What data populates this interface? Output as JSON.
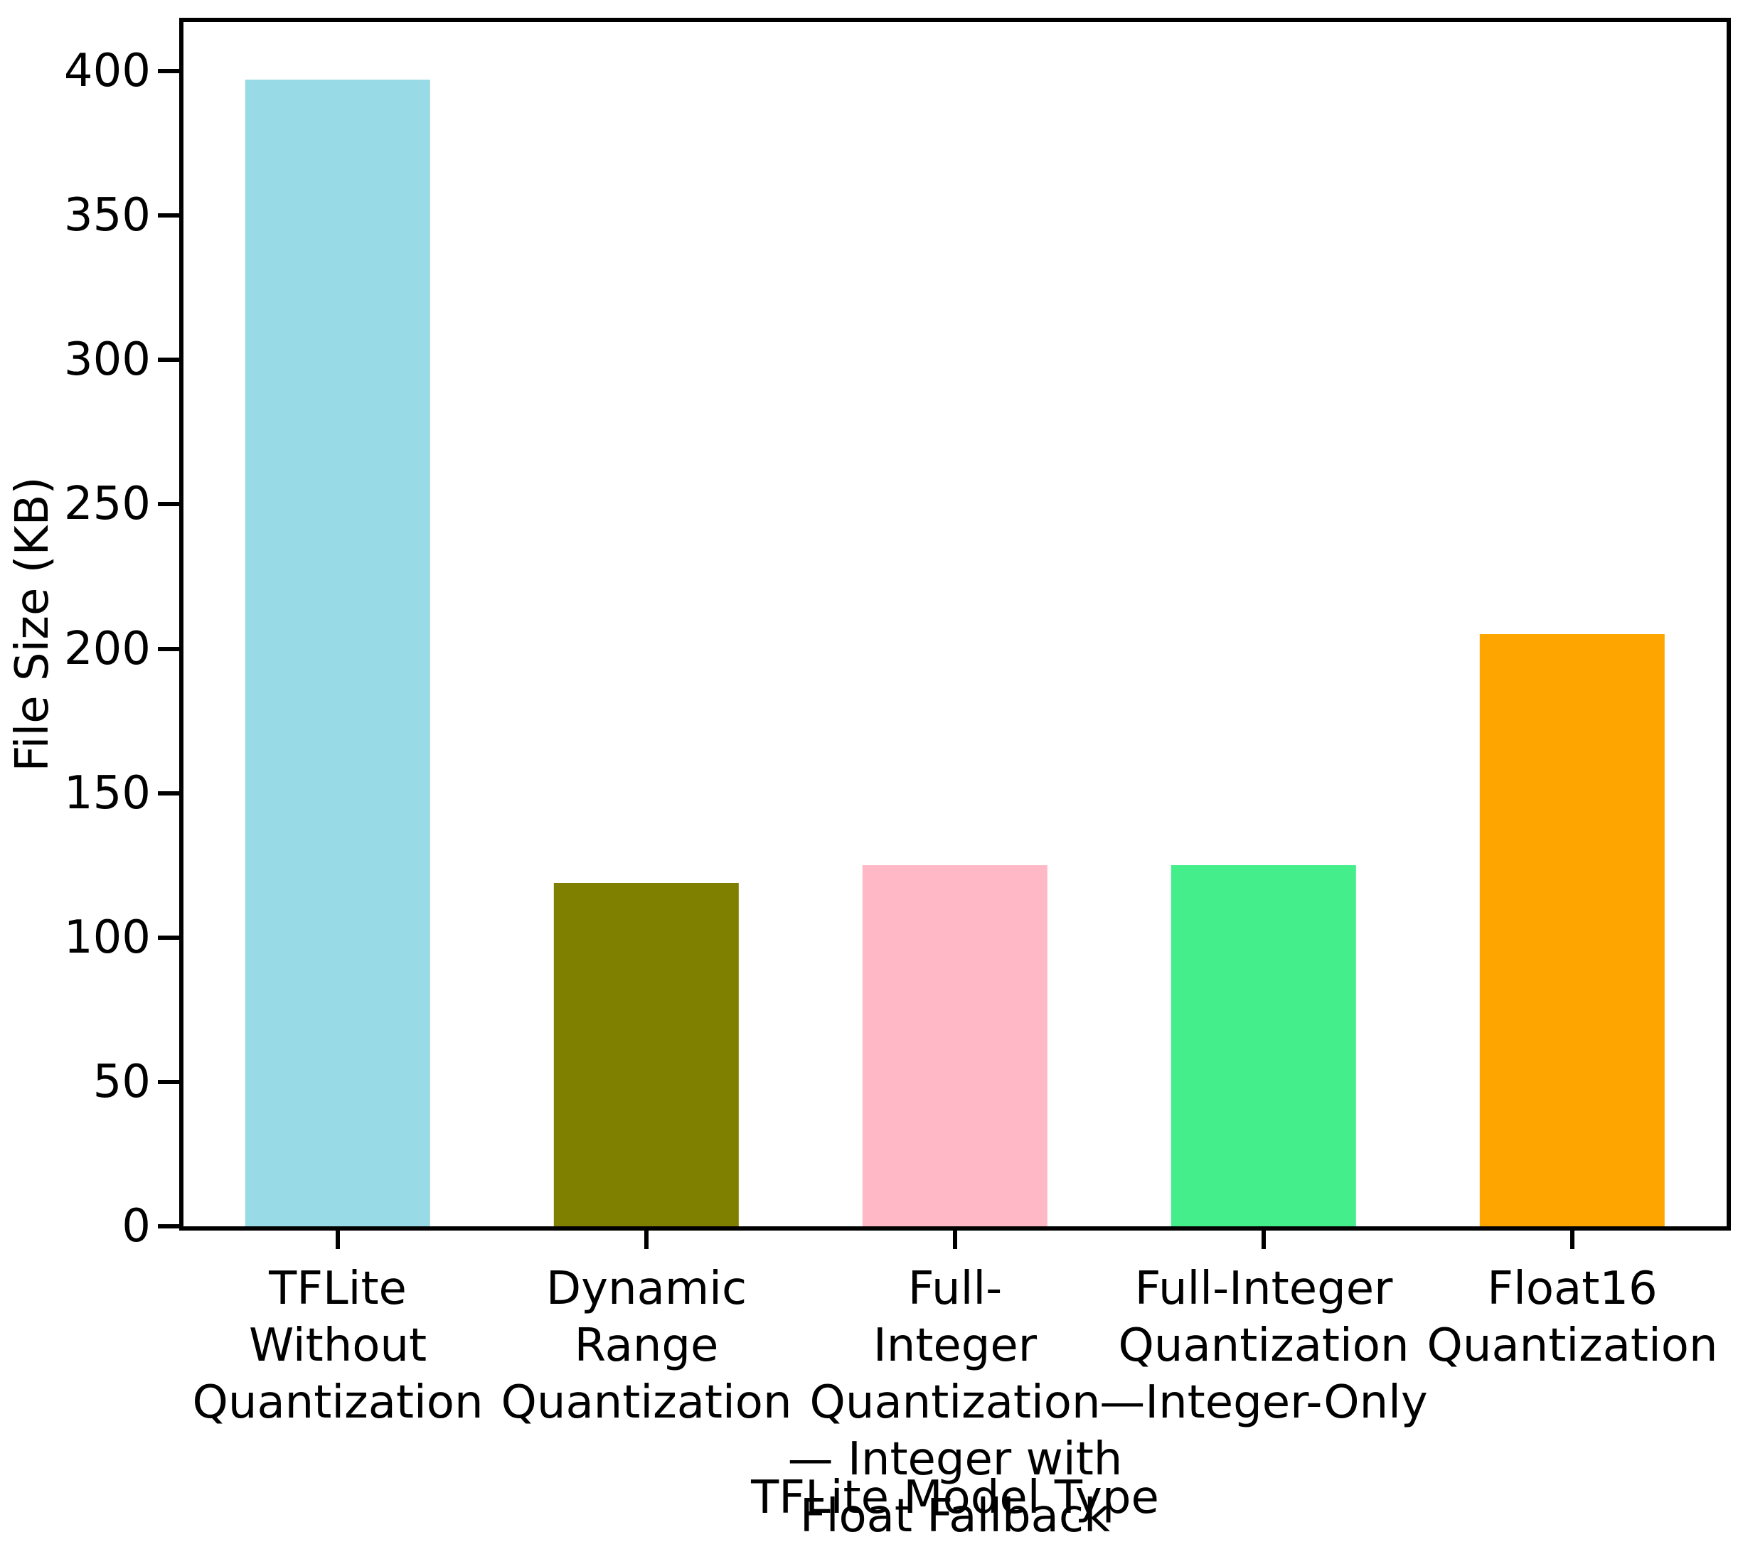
{
  "chart_data": {
    "type": "bar",
    "title": "",
    "xlabel": "TFLite Model Type",
    "ylabel": "File Size (KB)",
    "categories": [
      "TFLite\nWithout\nQuantization",
      "Dynamic\nRange\nQuantization",
      "Full-\nInteger\nQuantization\n— Integer with\nFloat Fallback",
      "Full-Integer\nQuantization\n—Integer-Only",
      "Float16\nQuantization"
    ],
    "values": [
      397,
      119,
      125,
      125,
      205
    ],
    "bar_colors": [
      "#99DAE7",
      "#808000",
      "#FFB9C6",
      "#44EE8B",
      "#FFA500"
    ],
    "ylim": [
      0,
      417
    ],
    "yticks": [
      0,
      50,
      100,
      150,
      200,
      250,
      300,
      350,
      400
    ],
    "bar_width_frac": 0.6,
    "grid": false,
    "axis_color": "#000000",
    "background_color": "#ffffff"
  }
}
